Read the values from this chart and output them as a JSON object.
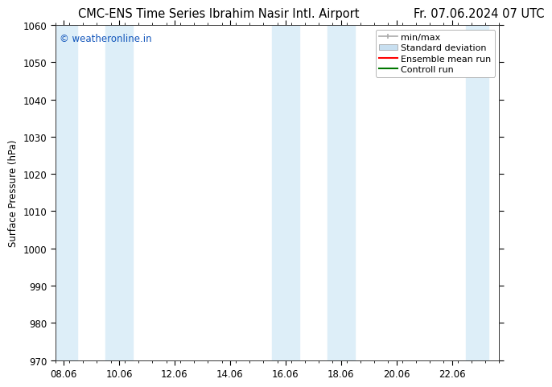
{
  "title_left": "CMC-ENS Time Series Ibrahim Nasir Intl. Airport",
  "title_right": "Fr. 07.06.2024 07 UTC",
  "ylabel": "Surface Pressure (hPa)",
  "ylim": [
    970,
    1060
  ],
  "yticks": [
    970,
    980,
    990,
    1000,
    1010,
    1020,
    1030,
    1040,
    1050,
    1060
  ],
  "xtick_labels": [
    "08.06",
    "10.06",
    "12.06",
    "14.06",
    "16.06",
    "18.06",
    "20.06",
    "22.06"
  ],
  "xtick_positions": [
    0,
    2,
    4,
    6,
    8,
    10,
    12,
    14
  ],
  "xlim": [
    -0.3,
    15.3
  ],
  "watermark": "© weatheronline.in",
  "watermark_color": "#1155bb",
  "shaded_bands": [
    {
      "x_start": -0.3,
      "x_end": 0.5,
      "color": "#ddeef8"
    },
    {
      "x_start": 1.5,
      "x_end": 2.5,
      "color": "#ddeef8"
    },
    {
      "x_start": 7.5,
      "x_end": 8.5,
      "color": "#ddeef8"
    },
    {
      "x_start": 9.5,
      "x_end": 10.5,
      "color": "#ddeef8"
    },
    {
      "x_start": 14.5,
      "x_end": 15.3,
      "color": "#ddeef8"
    }
  ],
  "legend_entries": [
    {
      "label": "min/max",
      "color": "#aaaaaa",
      "style": "line_with_caps"
    },
    {
      "label": "Standard deviation",
      "color": "#c8dff0",
      "style": "filled_box"
    },
    {
      "label": "Ensemble mean run",
      "color": "#ff0000",
      "style": "line"
    },
    {
      "label": "Controll run",
      "color": "#007700",
      "style": "line"
    }
  ],
  "bg_color": "#ffffff",
  "plot_bg_color": "#ffffff",
  "font_size_title": 10.5,
  "font_size_tick": 8.5,
  "font_size_legend": 8,
  "font_size_ylabel": 8.5,
  "font_size_watermark": 8.5
}
